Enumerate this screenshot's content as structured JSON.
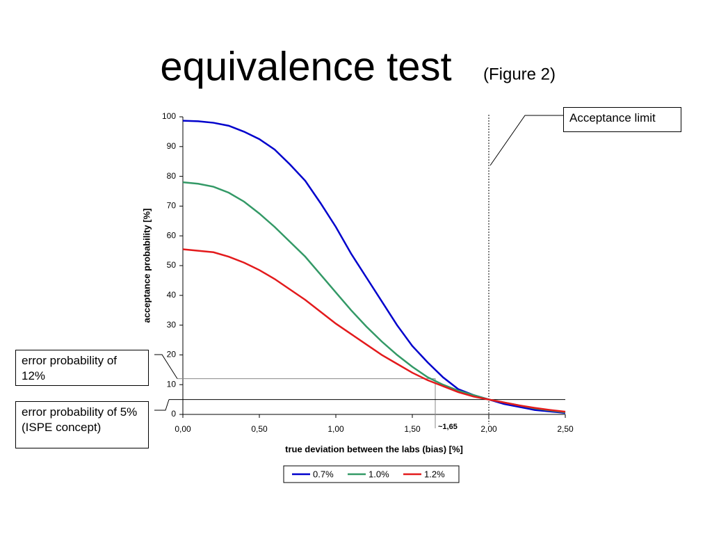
{
  "chart_data": {
    "type": "line",
    "title": "equivalence test",
    "subtitle": "(Figure 2)",
    "x_label": "true deviation between the labs (bias) [%]",
    "y_label": "acceptance probability [%]",
    "x": [
      0,
      0.1,
      0.2,
      0.3,
      0.4,
      0.5,
      0.6,
      0.7,
      0.8,
      0.9,
      1.0,
      1.1,
      1.2,
      1.3,
      1.4,
      1.5,
      1.6,
      1.7,
      1.8,
      1.9,
      2.0,
      2.1,
      2.2,
      2.3,
      2.4,
      2.5
    ],
    "series": [
      {
        "name": "0.7%",
        "color": "#0000cc",
        "values": [
          98.7,
          98.5,
          98,
          97,
          95,
          92.5,
          89,
          84,
          78.5,
          71,
          63,
          54,
          46,
          38,
          30,
          23,
          17.5,
          12.5,
          8.5,
          6.5,
          5,
          3.5,
          2.5,
          1.5,
          1,
          0.5
        ]
      },
      {
        "name": "1.0%",
        "color": "#339966",
        "values": [
          78,
          77.5,
          76.5,
          74.5,
          71.5,
          67.5,
          63,
          58,
          53,
          47,
          41,
          35,
          29.5,
          24.5,
          20,
          16,
          12.5,
          10,
          8,
          6.5,
          5,
          4,
          3,
          2,
          1.3,
          0.7
        ]
      },
      {
        "name": "1.2%",
        "color": "#e31a1c",
        "values": [
          55.5,
          55,
          54.5,
          53,
          51,
          48.5,
          45.5,
          42,
          38.5,
          34.5,
          30.5,
          27,
          23.5,
          20,
          17,
          14,
          11.5,
          9.5,
          7.5,
          6,
          5,
          4,
          3,
          2.2,
          1.5,
          0.9
        ]
      }
    ],
    "xlim": [
      0,
      2.5
    ],
    "ylim": [
      0,
      100
    ],
    "xticks": [
      {
        "value": 0,
        "label": "0,00"
      },
      {
        "value": 0.5,
        "label": "0,50"
      },
      {
        "value": 1.0,
        "label": "1,00"
      },
      {
        "value": 1.5,
        "label": "1,50"
      },
      {
        "value": 2.0,
        "label": "2,00"
      },
      {
        "value": 2.5,
        "label": "2,50"
      }
    ],
    "yticks": [
      0,
      10,
      20,
      30,
      40,
      50,
      60,
      70,
      80,
      90,
      100
    ],
    "legend": "bottom",
    "annotations": {
      "acceptance": {
        "text": "Acceptance limit",
        "x": 2.0
      },
      "error12": {
        "text": "error probability of 12%",
        "y": 12,
        "x": 1.65
      },
      "error5": {
        "text": "error probability of 5% (ISPE concept)",
        "y": 5
      },
      "bias": {
        "text": "~1,65",
        "x": 1.65
      }
    }
  }
}
